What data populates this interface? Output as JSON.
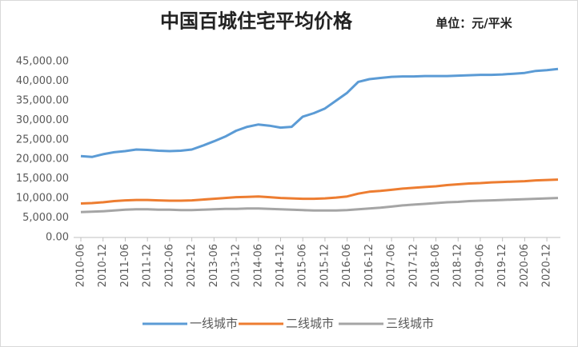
{
  "chart_data": {
    "type": "line",
    "title": "中国百城住宅平均价格",
    "subtitle": "单位：元/平米",
    "categories": [
      "2010-06",
      null,
      "2010-12",
      null,
      "2011-06",
      null,
      "2011-12",
      null,
      "2012-06",
      null,
      "2012-12",
      null,
      "2013-06",
      null,
      "2013-12",
      null,
      "2014-06",
      null,
      "2014-12",
      null,
      "2015-06",
      null,
      "2015-12",
      null,
      "2016-06",
      null,
      "2016-12",
      null,
      "2017-06",
      null,
      "2017-12",
      null,
      "2018-06",
      null,
      "2018-12",
      null,
      "2019-06",
      null,
      "2019-12",
      null,
      "2020-06",
      null,
      "2020-12",
      null
    ],
    "series": [
      {
        "name": "一线城市",
        "color": "#5b9bd5",
        "values": [
          20800,
          20600,
          21300,
          21800,
          22100,
          22500,
          22400,
          22200,
          22100,
          22200,
          22500,
          23500,
          24600,
          25800,
          27300,
          28300,
          28900,
          28600,
          28100,
          28300,
          30900,
          31800,
          33000,
          35000,
          37000,
          39800,
          40500,
          40800,
          41100,
          41200,
          41200,
          41300,
          41300,
          41300,
          41400,
          41500,
          41600,
          41600,
          41700,
          41900,
          42100,
          42600,
          42800,
          43100
        ]
      },
      {
        "name": "二线城市",
        "color": "#ed7d31",
        "values": [
          8700,
          8800,
          9000,
          9300,
          9500,
          9600,
          9600,
          9500,
          9400,
          9400,
          9500,
          9700,
          9900,
          10100,
          10300,
          10400,
          10500,
          10300,
          10100,
          10000,
          9900,
          9900,
          10000,
          10200,
          10500,
          11200,
          11700,
          11900,
          12200,
          12500,
          12700,
          12900,
          13100,
          13400,
          13600,
          13800,
          13900,
          14100,
          14200,
          14300,
          14400,
          14600,
          14700,
          14800
        ]
      },
      {
        "name": "三线城市",
        "color": "#a5a5a5",
        "values": [
          6500,
          6600,
          6700,
          6900,
          7100,
          7200,
          7200,
          7100,
          7100,
          7000,
          7000,
          7100,
          7200,
          7300,
          7300,
          7400,
          7400,
          7300,
          7200,
          7100,
          7000,
          6900,
          6900,
          6900,
          7000,
          7200,
          7400,
          7600,
          7900,
          8200,
          8400,
          8600,
          8800,
          9000,
          9100,
          9300,
          9400,
          9500,
          9600,
          9700,
          9800,
          9900,
          10000,
          10100
        ]
      }
    ],
    "ylim": [
      0,
      45000
    ],
    "yticks": [
      {
        "value": 0,
        "label": "0.00"
      },
      {
        "value": 5000,
        "label": "5,000.00"
      },
      {
        "value": 10000,
        "label": "10,000.00"
      },
      {
        "value": 15000,
        "label": "15,000.00"
      },
      {
        "value": 20000,
        "label": "20,000.00"
      },
      {
        "value": 25000,
        "label": "25,000.00"
      },
      {
        "value": 30000,
        "label": "30,000.00"
      },
      {
        "value": 35000,
        "label": "35,000.00"
      },
      {
        "value": 40000,
        "label": "40,000.00"
      },
      {
        "value": 45000,
        "label": "45,000.00"
      }
    ],
    "grid": false,
    "legend": "bottom"
  }
}
